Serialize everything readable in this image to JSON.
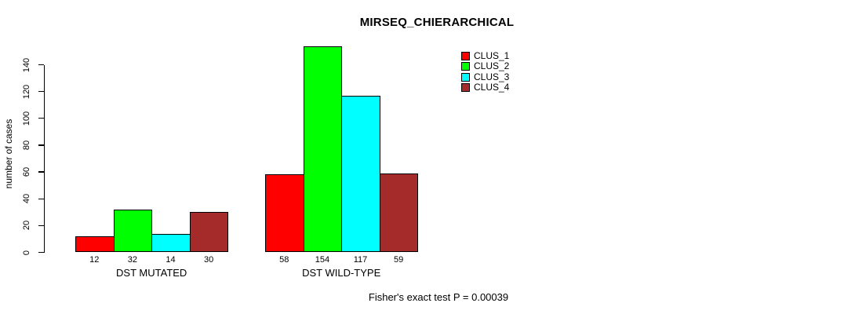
{
  "page": {
    "background": "#ffffff"
  },
  "chart_data": {
    "type": "bar",
    "title": "MIRSEQ_CHIERARCHICAL",
    "xlabel": "",
    "ylabel": "number of cases",
    "categories": [
      "DST MUTATED",
      "DST WILD-TYPE"
    ],
    "series": [
      {
        "name": "CLUS_1",
        "color": "#ff0000",
        "values": [
          12,
          58
        ]
      },
      {
        "name": "CLUS_2",
        "color": "#00ff00",
        "values": [
          32,
          154
        ]
      },
      {
        "name": "CLUS_3",
        "color": "#00ffff",
        "values": [
          14,
          117
        ]
      },
      {
        "name": "CLUS_4",
        "color": "#a52a2a",
        "values": [
          30,
          59
        ]
      }
    ],
    "yticks": [
      0,
      20,
      40,
      60,
      80,
      100,
      120,
      140
    ],
    "ylim": [
      0,
      140
    ],
    "bar_value_labels_shown": true,
    "grid": false,
    "legend_position": "top-right",
    "annotation": "Fisher's exact test P = 0.00039",
    "axis_color": "#000000",
    "bar_border_color": "#000000",
    "text_color": "#000000"
  }
}
